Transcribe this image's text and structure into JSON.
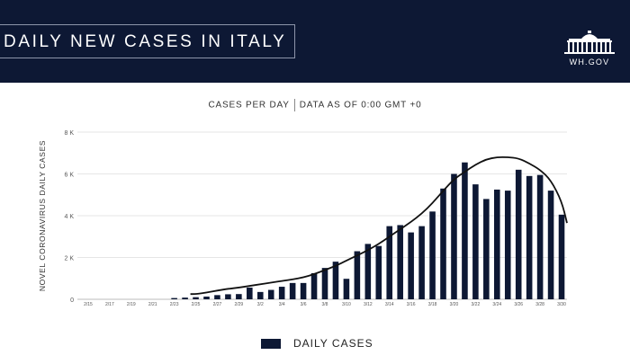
{
  "header": {
    "title": "DAILY NEW CASES IN ITALY",
    "logo_text": "WH.GOV",
    "logo_icon": "white-house-icon"
  },
  "subtitle": {
    "left": "CASES PER DAY",
    "right": "DATA AS OF 0:00 GMT +0"
  },
  "colors": {
    "header_bg": "#0d1834",
    "bar": "#0d1834",
    "line": "#111111"
  },
  "chart_data": {
    "type": "bar",
    "title": "DAILY NEW CASES IN ITALY",
    "ylabel": "NOVEL CORONAVIRUS DAILY CASES",
    "xlabel": "",
    "ylim": [
      0,
      8000
    ],
    "yticks": [
      0,
      2000,
      4000,
      6000,
      8000
    ],
    "ytick_labels": [
      "0",
      "2 K",
      "4 K",
      "6 K",
      "8 K"
    ],
    "grid": true,
    "legend_position": "bottom",
    "x": [
      "2/15",
      "2/16",
      "2/17",
      "2/18",
      "2/19",
      "2/20",
      "2/21",
      "2/22",
      "2/23",
      "2/24",
      "2/25",
      "2/26",
      "2/27",
      "2/28",
      "2/29",
      "3/1",
      "3/2",
      "3/3",
      "3/4",
      "3/5",
      "3/6",
      "3/7",
      "3/8",
      "3/9",
      "3/10",
      "3/11",
      "3/12",
      "3/13",
      "3/14",
      "3/15",
      "3/16",
      "3/17",
      "3/18",
      "3/19",
      "3/20",
      "3/21",
      "3/22",
      "3/23",
      "3/24",
      "3/25",
      "3/26",
      "3/27",
      "3/28",
      "3/29",
      "3/30"
    ],
    "xtick_labels": [
      "2/15",
      "2/17",
      "2/19",
      "2/21",
      "2/23",
      "2/25",
      "2/27",
      "2/29",
      "3/2",
      "3/4",
      "3/6",
      "3/8",
      "3/10",
      "3/12",
      "3/14",
      "3/16",
      "3/18",
      "3/20",
      "3/22",
      "3/24",
      "3/26",
      "3/28",
      "3/30"
    ],
    "series": [
      {
        "name": "DAILY CASES",
        "type": "bar",
        "values": [
          0,
          0,
          0,
          0,
          0,
          0,
          0,
          0,
          60,
          80,
          100,
          130,
          200,
          240,
          250,
          560,
          350,
          450,
          600,
          780,
          780,
          1250,
          1500,
          1800,
          980,
          2300,
          2650,
          2550,
          3500,
          3550,
          3200,
          3500,
          4200,
          5300,
          6000,
          6550,
          5500,
          4800,
          5250,
          5200,
          6200,
          5900,
          5950,
          5200,
          4050
        ]
      },
      {
        "type": "line",
        "values": [
          null,
          null,
          null,
          null,
          null,
          null,
          null,
          null,
          null,
          null,
          null,
          null,
          null,
          null,
          null,
          null,
          null,
          null,
          null,
          null,
          null,
          null,
          null,
          null,
          null,
          null,
          null,
          null,
          null,
          null,
          null,
          null,
          null,
          null,
          null,
          null,
          null,
          null,
          null,
          null,
          null,
          null,
          null,
          null,
          null
        ],
        "smoothed": [
          [
            9.5,
            250
          ],
          [
            10,
            250
          ],
          [
            11,
            320
          ],
          [
            12,
            420
          ],
          [
            13,
            500
          ],
          [
            14,
            560
          ],
          [
            15,
            640
          ],
          [
            16,
            720
          ],
          [
            17,
            800
          ],
          [
            18,
            880
          ],
          [
            19,
            950
          ],
          [
            20,
            1050
          ],
          [
            21,
            1200
          ],
          [
            22,
            1400
          ],
          [
            23,
            1600
          ],
          [
            24,
            1850
          ],
          [
            25,
            2100
          ],
          [
            26,
            2350
          ],
          [
            27,
            2650
          ],
          [
            28,
            3000
          ],
          [
            29,
            3350
          ],
          [
            30,
            3700
          ],
          [
            31,
            4100
          ],
          [
            32,
            4600
          ],
          [
            33,
            5200
          ],
          [
            34,
            5750
          ],
          [
            35,
            6100
          ],
          [
            36,
            6450
          ],
          [
            37,
            6700
          ],
          [
            38,
            6800
          ],
          [
            39,
            6800
          ],
          [
            40,
            6750
          ],
          [
            41,
            6500
          ],
          [
            42,
            6200
          ],
          [
            43,
            5700
          ],
          [
            44,
            4700
          ],
          [
            44.5,
            3650
          ]
        ]
      }
    ]
  },
  "legend": {
    "label": "DAILY CASES"
  }
}
